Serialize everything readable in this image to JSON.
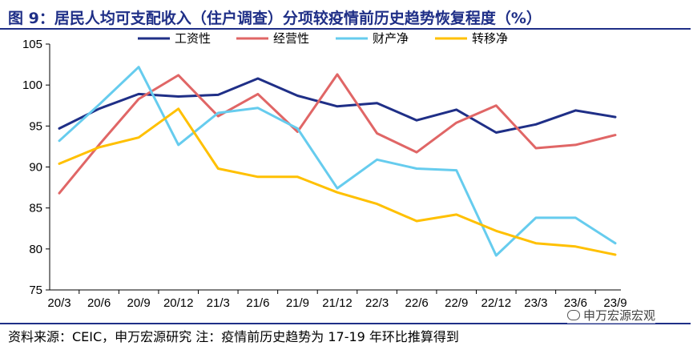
{
  "header": {
    "title": "图 9：居民人均可支配收入（住户调查）分项较疫情前历史趋势恢复程度（%）"
  },
  "footer": {
    "source": "资料来源：CEIC，申万宏源研究 注：疫情前历史趋势为 17-19 年环比推算得到"
  },
  "watermark": {
    "text": "申万宏源宏观"
  },
  "chart_data": {
    "type": "line",
    "title": "",
    "xlabel": "",
    "ylabel": "",
    "ylim": [
      75,
      105
    ],
    "yticks": [
      "75",
      "80",
      "85",
      "90",
      "95",
      "100",
      "105"
    ],
    "grid": false,
    "legend_position": "top-center",
    "categories": [
      "20/3",
      "20/6",
      "20/9",
      "20/12",
      "21/3",
      "21/6",
      "21/9",
      "21/12",
      "22/3",
      "22/6",
      "22/9",
      "22/12",
      "23/3",
      "23/6",
      "23/9"
    ],
    "series": [
      {
        "name": "工资性",
        "color": "#1F2F87",
        "values": [
          94.7,
          97.1,
          98.9,
          98.6,
          98.8,
          100.8,
          98.7,
          97.4,
          97.8,
          95.7,
          97.0,
          94.2,
          95.2,
          96.9,
          96.1
        ]
      },
      {
        "name": "经营性",
        "color": "#E06666",
        "values": [
          86.8,
          92.7,
          98.3,
          101.2,
          96.2,
          98.9,
          94.3,
          101.3,
          94.1,
          91.8,
          95.4,
          97.5,
          92.3,
          92.7,
          93.9
        ]
      },
      {
        "name": "财产净",
        "color": "#66CCEE",
        "values": [
          93.2,
          97.6,
          102.2,
          92.7,
          96.6,
          97.2,
          94.7,
          87.4,
          90.9,
          89.8,
          89.6,
          79.2,
          83.8,
          83.8,
          80.7
        ]
      },
      {
        "name": "转移净",
        "color": "#FFC000",
        "values": [
          90.4,
          92.4,
          93.6,
          97.1,
          89.8,
          88.8,
          88.8,
          86.9,
          85.5,
          83.4,
          84.2,
          82.2,
          80.7,
          80.3,
          79.3
        ]
      }
    ]
  }
}
